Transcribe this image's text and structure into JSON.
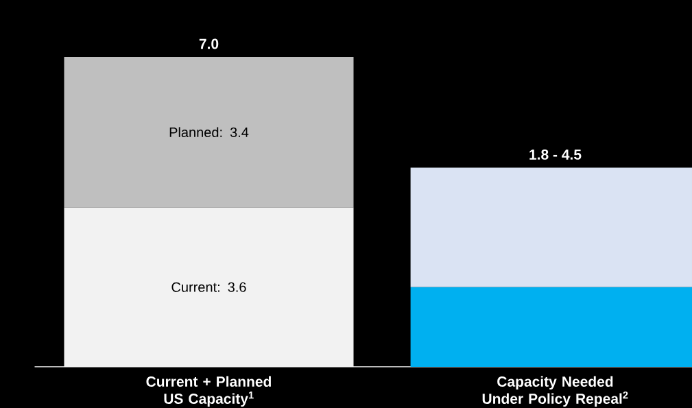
{
  "chart_data": {
    "type": "bar",
    "stacked": true,
    "categories": [
      "Current + Planned US Capacity$^{1}$",
      "Capacity Needed Under Policy Repeal$^{2}$"
    ],
    "series": [
      {
        "colors": [
          "#f2f2f2",
          "#00b0f0"
        ],
        "values": [
          3.6,
          1.8
        ],
        "value_labels": [
          "Current: 3.6",
          null
        ]
      },
      {
        "colors": [
          "#bfbfbf",
          "#dae3f3"
        ],
        "values": [
          3.4,
          2.7
        ],
        "value_labels": [
          "Planned: 3.4",
          null
        ]
      }
    ],
    "totals": [
      "7.0",
      "1.8 - 4.5"
    ],
    "ylim": [
      0,
      7
    ]
  }
}
